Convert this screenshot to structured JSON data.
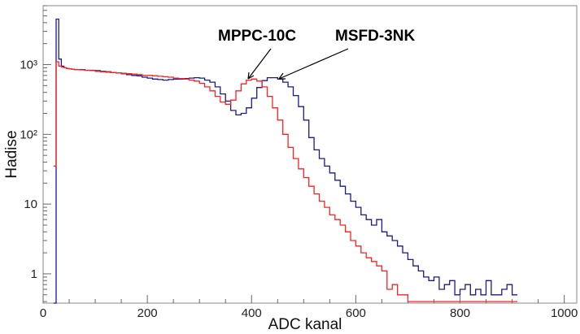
{
  "chart_data": {
    "type": "line",
    "title": "",
    "xlabel": "ADC kanal",
    "ylabel": "Hadise",
    "x_ticks": [
      "0",
      "200",
      "400",
      "600",
      "800",
      "1000"
    ],
    "y_ticks": [
      "1",
      "10",
      "10²",
      "10³"
    ],
    "xlim": [
      0,
      1024
    ],
    "ylim": [
      0.38,
      7000
    ],
    "log_y": true,
    "grid": false,
    "colors": {
      "MSFD-3NK": "#1a1a8c",
      "MPPC-10C": "#ff2020"
    },
    "series": [
      {
        "name": "MSFD-3NK",
        "color": "#1a1a8c",
        "x": [
          20,
          25,
          30,
          35,
          40,
          45,
          50,
          55,
          60,
          70,
          80,
          90,
          100,
          110,
          120,
          130,
          140,
          150,
          160,
          170,
          180,
          190,
          200,
          210,
          220,
          230,
          240,
          250,
          260,
          270,
          280,
          290,
          300,
          310,
          320,
          330,
          340,
          350,
          360,
          370,
          380,
          390,
          400,
          410,
          420,
          430,
          440,
          450,
          460,
          470,
          480,
          490,
          500,
          510,
          520,
          530,
          540,
          550,
          560,
          570,
          580,
          590,
          600,
          610,
          620,
          630,
          640,
          650,
          660,
          670,
          680,
          690,
          700,
          710,
          720,
          730,
          740,
          750,
          760,
          770,
          780,
          790,
          800,
          810,
          820,
          830,
          840,
          850,
          860,
          870,
          880,
          890,
          900
        ],
        "values": [
          0.3,
          4500,
          1200,
          950,
          900,
          880,
          870,
          860,
          850,
          850,
          830,
          830,
          820,
          800,
          790,
          770,
          760,
          740,
          720,
          700,
          690,
          660,
          640,
          620,
          610,
          600,
          610,
          620,
          620,
          630,
          640,
          650,
          640,
          600,
          560,
          480,
          380,
          300,
          220,
          190,
          200,
          240,
          330,
          470,
          590,
          650,
          650,
          620,
          560,
          480,
          360,
          250,
          160,
          90,
          60,
          45,
          35,
          28,
          22,
          18,
          14,
          11,
          9,
          7,
          6,
          5,
          6,
          4,
          3.5,
          3,
          2.5,
          2.0,
          1.6,
          1.3,
          1.1,
          0.9,
          0.8,
          0.9,
          0.6,
          0.7,
          0.8,
          0.5,
          0.6,
          0.7,
          0.5,
          0.6,
          0.5,
          0.8,
          0.5,
          0.5,
          0.6,
          0.7,
          0.5
        ]
      },
      {
        "name": "MPPC-10C",
        "color": "#ff2020",
        "x": [
          20,
          25,
          30,
          35,
          40,
          45,
          50,
          55,
          60,
          70,
          80,
          90,
          100,
          110,
          120,
          130,
          140,
          150,
          160,
          170,
          180,
          190,
          200,
          210,
          220,
          230,
          240,
          250,
          260,
          270,
          280,
          290,
          300,
          310,
          320,
          330,
          340,
          350,
          360,
          370,
          380,
          390,
          400,
          410,
          420,
          430,
          440,
          450,
          460,
          470,
          480,
          490,
          500,
          510,
          520,
          530,
          540,
          550,
          560,
          570,
          580,
          590,
          600,
          610,
          620,
          630,
          640,
          650,
          660,
          670,
          680,
          690,
          700,
          710,
          720,
          730,
          740,
          750,
          760,
          770,
          780,
          790,
          800,
          810,
          820,
          830,
          840,
          850,
          860,
          870,
          880,
          890,
          900
        ],
        "values": [
          35,
          1100,
          950,
          920,
          900,
          880,
          870,
          860,
          850,
          840,
          830,
          820,
          800,
          790,
          780,
          770,
          760,
          750,
          740,
          730,
          720,
          700,
          700,
          690,
          680,
          670,
          660,
          640,
          630,
          620,
          600,
          580,
          540,
          480,
          420,
          350,
          290,
          270,
          310,
          420,
          530,
          600,
          620,
          580,
          480,
          350,
          240,
          160,
          100,
          65,
          45,
          32,
          24,
          18,
          14,
          11,
          9,
          7,
          6,
          5,
          4,
          3,
          2.5,
          2,
          1.7,
          1.5,
          1.3,
          1.1,
          0.6,
          0.7,
          0.5,
          0.5,
          0.4,
          0.4,
          0.4,
          0.4,
          0.4,
          0.4,
          0.4,
          0.4,
          0.4,
          0.4,
          0.4,
          0.4,
          0.4,
          0.4,
          0.4,
          0.4,
          0.4,
          0.4,
          0.4,
          0.4,
          0.4
        ]
      }
    ],
    "annotations": [
      {
        "text": "MPPC-10C",
        "points_to": "MPPC-10C"
      },
      {
        "text": "MSFD-3NK",
        "points_to": "MSFD-3NK"
      }
    ]
  }
}
